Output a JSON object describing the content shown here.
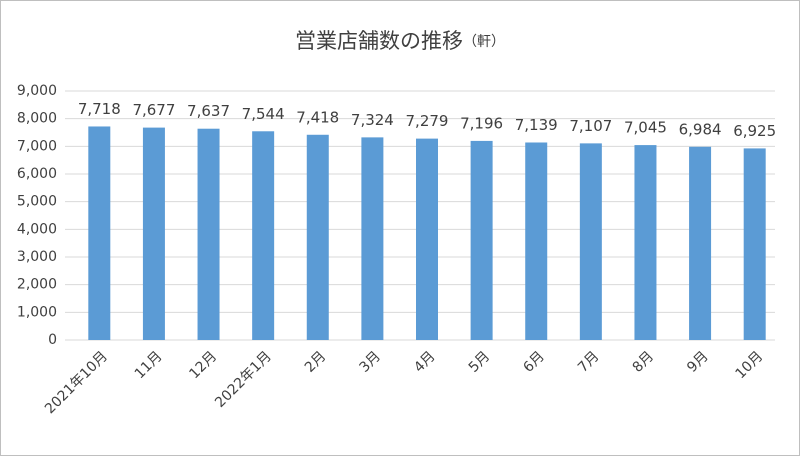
{
  "chart_data": {
    "type": "bar",
    "title": "営業店舗数の推移",
    "unit": "（軒）",
    "categories": [
      "2021年10月",
      "11月",
      "12月",
      "2022年1月",
      "2月",
      "3月",
      "4月",
      "5月",
      "6月",
      "7月",
      "8月",
      "9月",
      "10月"
    ],
    "values": [
      7718,
      7677,
      7637,
      7544,
      7418,
      7324,
      7279,
      7196,
      7139,
      7107,
      7045,
      6984,
      6925
    ],
    "value_labels": [
      "7,718",
      "7,677",
      "7,637",
      "7,544",
      "7,418",
      "7,324",
      "7,279",
      "7,196",
      "7,139",
      "7,107",
      "7,045",
      "6,984",
      "6,925"
    ],
    "color": "#5b9bd5",
    "ylim": [
      0,
      9000
    ],
    "yticks": [
      0,
      {
        "value": 1000,
        "label": "1,000"
      },
      {
        "value": 2000,
        "label": "2,000"
      },
      {
        "value": 3000,
        "label": "3,000"
      },
      {
        "value": 4000,
        "label": "4,000"
      },
      {
        "value": 5000,
        "label": "5,000"
      },
      {
        "value": 6000,
        "label": "6,000"
      },
      {
        "value": 7000,
        "label": "7,000"
      },
      {
        "value": 8000,
        "label": "8,000"
      },
      {
        "value": 9000,
        "label": "9,000"
      }
    ],
    "grid": true
  }
}
